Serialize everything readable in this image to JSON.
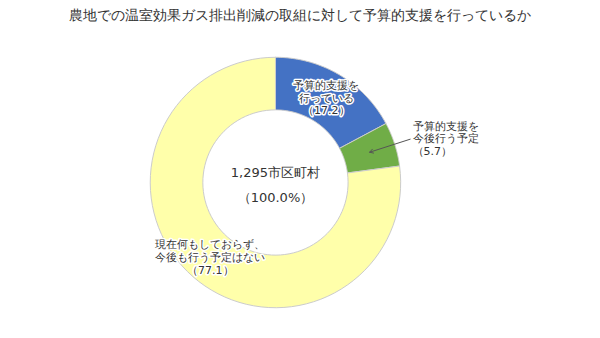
{
  "chart_data": {
    "type": "pie",
    "title": "農地での温室効果ガス排出削減の取組に対して予算的支援を行っているか",
    "categories": [
      "予算的支援を\n行っている",
      "予算的支援を\n今後行う予定",
      "現在何もしておらず、\n今後も行う予定はない"
    ],
    "values": [
      17.2,
      5.7,
      77.1
    ],
    "value_labels": [
      "（17.2）",
      "（5.7）",
      "（77.1）"
    ],
    "colors": [
      "#4472C4",
      "#70AD47",
      "#FFFFAA"
    ],
    "data_labels": true,
    "annotations": [
      "1,295市区町村",
      "（100.0%）"
    ]
  }
}
